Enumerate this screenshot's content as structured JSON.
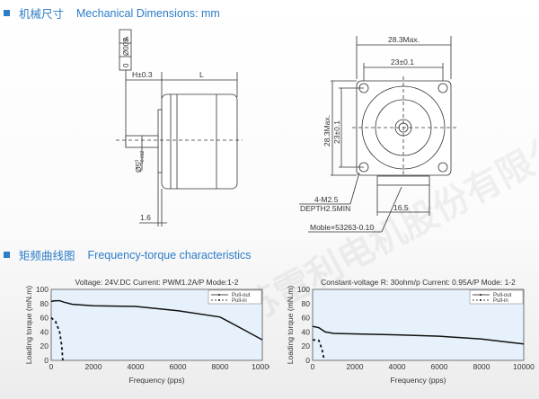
{
  "sections": {
    "mechanical": {
      "cn": "机械尺寸",
      "en": "Mechanical Dimensions: mm"
    },
    "torque": {
      "cn": "矩频曲线图",
      "en": "Frequency-torque characteristics"
    }
  },
  "drawing": {
    "tolerance_frame": [
      "0",
      "Ø005",
      "A"
    ],
    "h_dim": "H±0.3",
    "l_dim": "L",
    "shaft_dia": "Ø5",
    "shaft_tol_upper": "0",
    "shaft_tol_lower": "-0.012",
    "flange": "1.6",
    "width_max": "28.3Max.",
    "hole_pitch_h": "23±0.1",
    "height_max": "28.3Max.",
    "hole_pitch_v": "23±0.1",
    "screw": "4-M2.5",
    "depth": "DEPTH2.5MIN",
    "connector_width": "16.5",
    "connector": "Moble×53263-0.10"
  },
  "watermark": "江苏雷利电机股份有限公司 JIANGSU LEILI MOTOR CO., LTD.",
  "colors": {
    "accent": "#2c7cc7",
    "plot_bg": "#e6f1fb",
    "line": "#111111"
  },
  "chart_data": [
    {
      "type": "line",
      "title": "Voltage: 24V.DC Current: PWM1.2A/P Mode:1-2",
      "xlabel": "Frequency (pps)",
      "ylabel": "Loading torque (mN.m)",
      "xlim": [
        0,
        10000
      ],
      "ylim": [
        0,
        100
      ],
      "xticks": [
        "0",
        "2000",
        "4000",
        "6000",
        "8000",
        "10000"
      ],
      "yticks": [
        "0",
        "20",
        "40",
        "60",
        "80",
        "100"
      ],
      "legend": "top-right",
      "series": [
        {
          "name": "Pull-out",
          "style": "solid",
          "x": [
            0,
            200,
            400,
            600,
            1000,
            2000,
            4000,
            6000,
            8000,
            9000,
            10000
          ],
          "y": [
            83,
            84,
            84,
            82,
            79,
            77,
            76,
            70,
            61,
            45,
            29
          ]
        },
        {
          "name": "Pull-in",
          "style": "dashed",
          "x": [
            0,
            200,
            400,
            500,
            550
          ],
          "y": [
            60,
            55,
            40,
            20,
            0
          ]
        }
      ]
    },
    {
      "type": "line",
      "title": "Constant-voltage R: 30ohm/p Current: 0.95A/P Mode: 1-2",
      "xlabel": "Frequency (pps)",
      "ylabel": "Loading torque (mN.m)",
      "xlim": [
        0,
        10000
      ],
      "ylim": [
        0,
        100
      ],
      "xticks": [
        "0",
        "2000",
        "4000",
        "6000",
        "8000",
        "10000"
      ],
      "yticks": [
        "0",
        "20",
        "40",
        "60",
        "80",
        "100"
      ],
      "legend": "top-right",
      "series": [
        {
          "name": "Pull-out",
          "style": "solid",
          "x": [
            0,
            300,
            600,
            1000,
            4000,
            6000,
            8000,
            10000
          ],
          "y": [
            48,
            46,
            40,
            38,
            36,
            34,
            30,
            23
          ]
        },
        {
          "name": "Pull-in",
          "style": "dashed",
          "x": [
            0,
            300,
            450,
            550
          ],
          "y": [
            29,
            28,
            15,
            0
          ]
        }
      ]
    }
  ]
}
